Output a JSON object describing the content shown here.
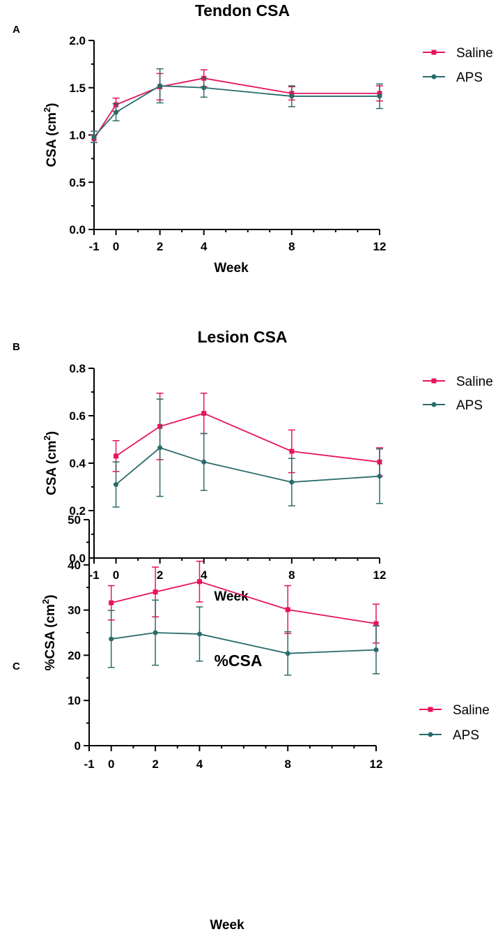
{
  "colors": {
    "saline": "#e8135b",
    "aps": "#2a6b6b"
  },
  "chart_data": [
    {
      "type": "line",
      "panel_label": "A",
      "title": "Tendon CSA",
      "xlabel": "Week",
      "ylabel": "CSA (cm",
      "ylabel_sup": "2",
      "ylabel_end": ")",
      "xlim": [
        -1,
        12
      ],
      "ylim": [
        0,
        2.0
      ],
      "x_ticks": [
        -1,
        0,
        2,
        4,
        8,
        12
      ],
      "x_tick_labels": [
        "-1",
        "0",
        "2",
        "4",
        "8",
        "12"
      ],
      "y_ticks": [
        0,
        0.5,
        1.0,
        1.5,
        2.0
      ],
      "y_tick_labels": [
        "0.0",
        "0.5",
        "1.0",
        "1.5",
        "2.0"
      ],
      "legend": [
        "Saline",
        "APS"
      ],
      "series": [
        {
          "name": "Saline",
          "x": [
            -1,
            0,
            2,
            4,
            8,
            12
          ],
          "values": [
            0.96,
            1.32,
            1.51,
            1.6,
            1.44,
            1.44
          ],
          "err": [
            0.04,
            0.07,
            0.14,
            0.09,
            0.07,
            0.08
          ]
        },
        {
          "name": "APS",
          "x": [
            -1,
            0,
            2,
            4,
            8,
            12
          ],
          "values": [
            0.98,
            1.24,
            1.52,
            1.5,
            1.41,
            1.41
          ],
          "err": [
            0.06,
            0.09,
            0.18,
            0.1,
            0.11,
            0.13
          ]
        }
      ]
    },
    {
      "type": "line",
      "panel_label": "B",
      "title": "Lesion CSA",
      "xlabel": "Week",
      "ylabel": "CSA (cm",
      "ylabel_sup": "2",
      "ylabel_end": ")",
      "xlim": [
        -1,
        12
      ],
      "ylim": [
        0,
        0.8
      ],
      "x_ticks": [
        -1,
        0,
        2,
        4,
        8,
        12
      ],
      "x_tick_labels": [
        "-1",
        "0",
        "2",
        "4",
        "8",
        "12"
      ],
      "y_ticks": [
        0,
        0.2,
        0.4,
        0.6,
        0.8
      ],
      "y_tick_labels": [
        "0.0",
        "0.2",
        "0.4",
        "0.6",
        "0.8"
      ],
      "legend": [
        "Saline",
        "APS"
      ],
      "series": [
        {
          "name": "Saline",
          "x": [
            0,
            2,
            4,
            8,
            12
          ],
          "values": [
            0.43,
            0.555,
            0.61,
            0.45,
            0.405
          ],
          "err": [
            0.065,
            0.14,
            0.085,
            0.09,
            0.06
          ]
        },
        {
          "name": "APS",
          "x": [
            0,
            2,
            4,
            8,
            12
          ],
          "values": [
            0.31,
            0.465,
            0.405,
            0.32,
            0.345
          ],
          "err": [
            0.095,
            0.205,
            0.12,
            0.1,
            0.115
          ]
        }
      ]
    },
    {
      "type": "line",
      "panel_label": "C",
      "title": "%CSA",
      "xlabel": "Week",
      "ylabel": "%CSA (cm",
      "ylabel_sup": "2",
      "ylabel_end": ")",
      "xlim": [
        -1,
        12
      ],
      "ylim": [
        0,
        50
      ],
      "x_ticks": [
        -1,
        0,
        2,
        4,
        8,
        12
      ],
      "x_tick_labels": [
        "-1",
        "0",
        "2",
        "4",
        "8",
        "12"
      ],
      "y_ticks": [
        0,
        10,
        20,
        30,
        40,
        50
      ],
      "y_tick_labels": [
        "0",
        "10",
        "20",
        "30",
        "40",
        "50"
      ],
      "legend": [
        "Saline",
        "APS"
      ],
      "series": [
        {
          "name": "Saline",
          "x": [
            0,
            2,
            4,
            8,
            12
          ],
          "values": [
            31.6,
            34.0,
            36.3,
            30.1,
            27.0
          ],
          "err": [
            3.8,
            5.5,
            4.5,
            5.3,
            4.3
          ]
        },
        {
          "name": "APS",
          "x": [
            0,
            2,
            4,
            8,
            12
          ],
          "values": [
            23.6,
            25.0,
            24.7,
            20.4,
            21.2
          ],
          "err": [
            6.3,
            7.2,
            6.0,
            4.8,
            5.3
          ]
        }
      ]
    }
  ]
}
